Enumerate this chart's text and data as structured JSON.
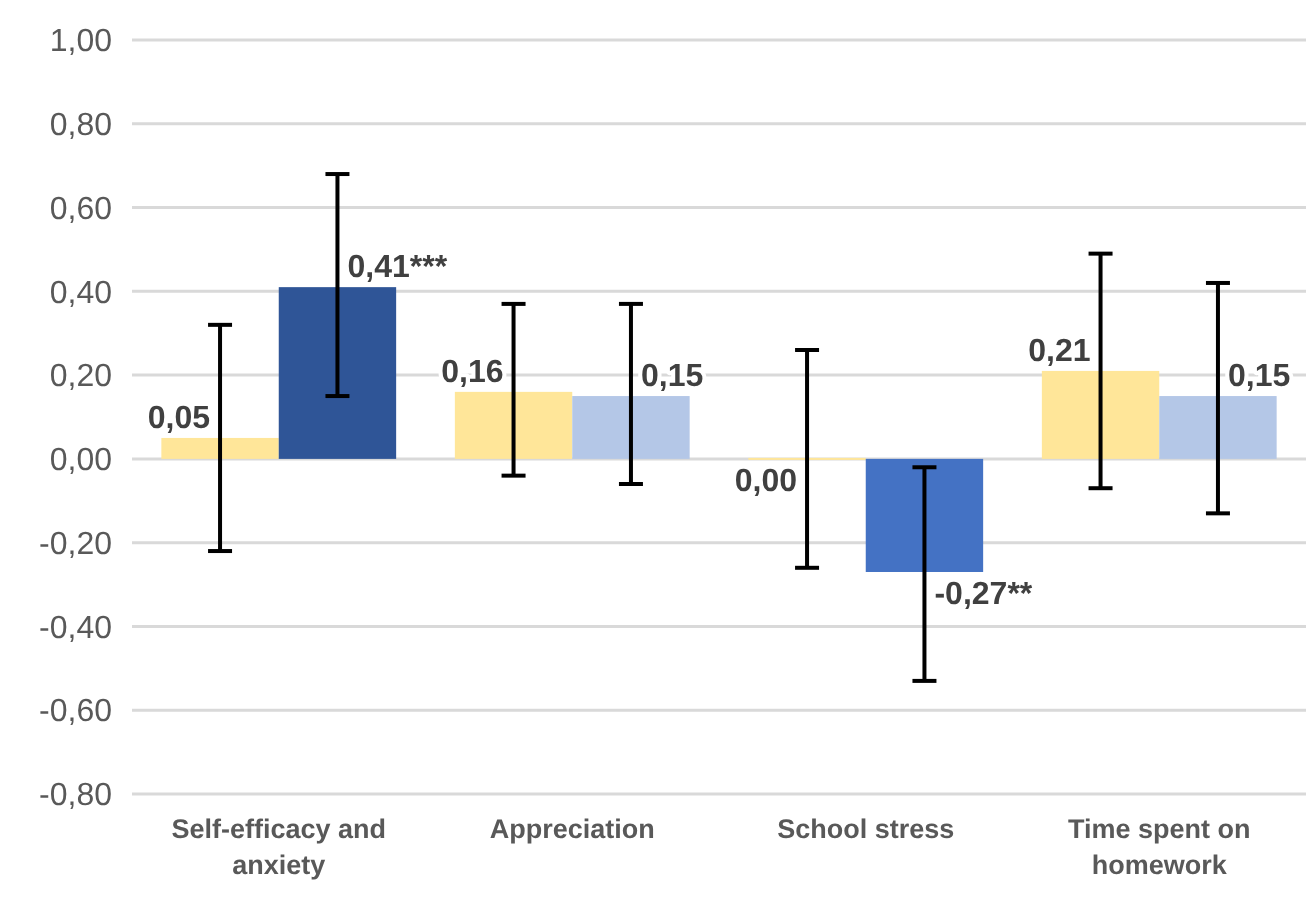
{
  "chart_data": {
    "type": "bar",
    "categories": [
      "Self-efficacy and anxiety",
      "Appreciation",
      "School stress",
      "Time spent on homework"
    ],
    "series": [
      {
        "color": "#ffe699",
        "values": [
          0.05,
          0.16,
          0.0,
          0.21
        ],
        "value_labels": [
          "0,05",
          "0,16",
          "0,00",
          "0,21"
        ],
        "errors": [
          [
            -0.22,
            0.32
          ],
          [
            -0.04,
            0.37
          ],
          [
            -0.26,
            0.26
          ],
          [
            -0.07,
            0.49
          ]
        ]
      },
      {
        "colors": [
          "#2f5597",
          "#b4c7e7",
          "#4472c4",
          "#b4c7e7"
        ],
        "values": [
          0.41,
          0.15,
          -0.27,
          0.15
        ],
        "value_labels": [
          "0,41***",
          "0,15",
          "-0,27**",
          "0,15"
        ],
        "errors": [
          [
            0.15,
            0.68
          ],
          [
            -0.06,
            0.37
          ],
          [
            -0.53,
            -0.02
          ],
          [
            -0.13,
            0.42
          ]
        ]
      }
    ],
    "ylim": [
      -0.8,
      1.0
    ],
    "yticks": [
      {
        "value": -0.8,
        "label": "-0,80"
      },
      {
        "value": -0.6,
        "label": "-0,60"
      },
      {
        "value": -0.4,
        "label": "-0,40"
      },
      {
        "value": -0.2,
        "label": "-0,20"
      },
      {
        "value": 0,
        "label": "0,00"
      },
      {
        "value": 0.2,
        "label": "0,20"
      },
      {
        "value": 0.4,
        "label": "0,40"
      },
      {
        "value": 0.6,
        "label": "0,60"
      },
      {
        "value": 0.8,
        "label": "0,80"
      },
      {
        "value": 1.0,
        "label": "1,00"
      }
    ],
    "grid": "y"
  }
}
